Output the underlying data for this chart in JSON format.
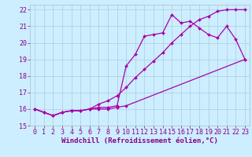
{
  "xlabel": "Windchill (Refroidissement éolien,°C)",
  "bg_color": "#cceeff",
  "grid_color": "#aaccdd",
  "line_color": "#aa00aa",
  "xlim": [
    -0.5,
    23.5
  ],
  "ylim": [
    15,
    22.3
  ],
  "xticks": [
    0,
    1,
    2,
    3,
    4,
    5,
    6,
    7,
    8,
    9,
    10,
    11,
    12,
    13,
    14,
    15,
    16,
    17,
    18,
    19,
    20,
    21,
    22,
    23
  ],
  "yticks": [
    15,
    16,
    17,
    18,
    19,
    20,
    21,
    22
  ],
  "line1_x": [
    0,
    1,
    2,
    3,
    4,
    5,
    6,
    7,
    8,
    9,
    10,
    11,
    12,
    13,
    14,
    15,
    16,
    17,
    18,
    19,
    20,
    21,
    22,
    23
  ],
  "line1_y": [
    16.0,
    15.8,
    15.6,
    15.8,
    15.9,
    15.9,
    16.0,
    16.1,
    16.1,
    16.2,
    18.6,
    19.3,
    20.4,
    20.5,
    20.6,
    21.7,
    21.2,
    21.3,
    20.9,
    20.5,
    20.3,
    21.0,
    20.2,
    19.0
  ],
  "line2_x": [
    0,
    1,
    2,
    3,
    4,
    5,
    6,
    7,
    8,
    9,
    10,
    11,
    12,
    13,
    14,
    15,
    16,
    17,
    18,
    19,
    20,
    21,
    22,
    23
  ],
  "line2_y": [
    16.0,
    15.8,
    15.6,
    15.8,
    15.9,
    15.9,
    16.0,
    16.3,
    16.5,
    16.8,
    17.3,
    17.9,
    18.4,
    18.9,
    19.4,
    20.0,
    20.5,
    21.0,
    21.4,
    21.6,
    21.9,
    22.0,
    22.0,
    22.0
  ],
  "line3_x": [
    0,
    1,
    2,
    3,
    4,
    5,
    6,
    7,
    8,
    9,
    10,
    23
  ],
  "line3_y": [
    16.0,
    15.8,
    15.6,
    15.8,
    15.9,
    15.9,
    16.0,
    16.0,
    16.0,
    16.1,
    16.2,
    19.0
  ],
  "xlabel_fontsize": 6.5,
  "tick_fontsize": 6.0,
  "lw": 0.9,
  "marker_size": 2.0
}
